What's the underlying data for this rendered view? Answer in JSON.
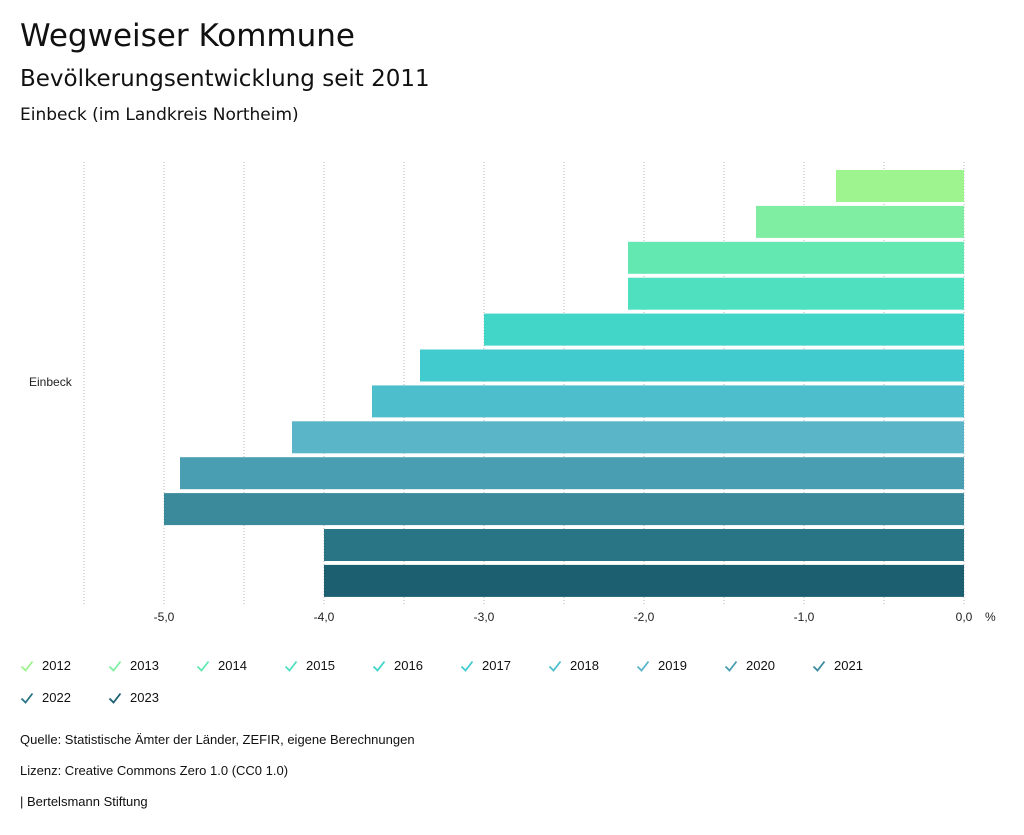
{
  "header": {
    "title": "Wegweiser Kommune",
    "subtitle": "Bevölkerungsentwicklung seit 2011",
    "region": "Einbeck (im Landkreis Northeim)"
  },
  "chart_data": {
    "type": "bar",
    "orientation": "horizontal",
    "category": "Einbeck",
    "unit": "%",
    "xlim": [
      -5.5,
      0
    ],
    "xticks": [
      "-5,0",
      "-4,0",
      "-3,0",
      "-2,0",
      "-1,0",
      "0,0"
    ],
    "xtick_values": [
      -5,
      -4,
      -3,
      -2,
      -1,
      0
    ],
    "grid": true,
    "series": [
      {
        "name": "2012",
        "value": -0.8,
        "color": "#9ef58f"
      },
      {
        "name": "2013",
        "value": -1.3,
        "color": "#80eea2"
      },
      {
        "name": "2014",
        "value": -2.1,
        "color": "#64e8b2"
      },
      {
        "name": "2015",
        "value": -2.1,
        "color": "#4fe0c0"
      },
      {
        "name": "2016",
        "value": -3.0,
        "color": "#41d6c8"
      },
      {
        "name": "2017",
        "value": -3.4,
        "color": "#41cbce"
      },
      {
        "name": "2018",
        "value": -3.7,
        "color": "#4dbfcc"
      },
      {
        "name": "2019",
        "value": -4.2,
        "color": "#5ab5c8"
      },
      {
        "name": "2020",
        "value": -4.9,
        "color": "#4a9eb2"
      },
      {
        "name": "2021",
        "value": -5.0,
        "color": "#3b8a9c"
      },
      {
        "name": "2022",
        "value": -4.0,
        "color": "#2a7585"
      },
      {
        "name": "2023",
        "value": -4.0,
        "color": "#1b5f70"
      }
    ]
  },
  "footer": {
    "source": "Quelle: Statistische Ämter der Länder, ZEFIR, eigene Berechnungen",
    "license": "Lizenz: Creative Commons Zero 1.0 (CC0 1.0)",
    "publisher": "| Bertelsmann Stiftung"
  }
}
